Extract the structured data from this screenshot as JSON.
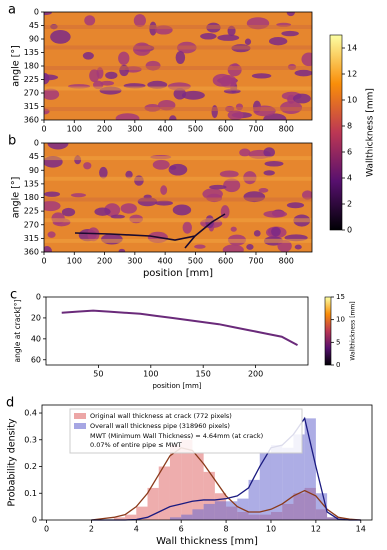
{
  "chart_data": [
    {
      "type": "heatmap",
      "panel_label": "a",
      "ylabel": "angle [°]",
      "xlim": [
        0,
        885
      ],
      "xticks": [
        0,
        100,
        200,
        300,
        400,
        500,
        600,
        700,
        800
      ],
      "ylim": [
        0,
        360
      ],
      "y_inverted": true,
      "yticks": [
        0,
        45,
        90,
        135,
        180,
        225,
        270,
        315,
        360
      ],
      "colorbar": {
        "label": "Wallthickness [mm]",
        "lim": [
          0,
          15
        ],
        "ticks": [
          0,
          2,
          4,
          6,
          8,
          10,
          12,
          14
        ]
      }
    },
    {
      "type": "heatmap",
      "panel_label": "b",
      "ylabel": "angle [°]",
      "xlabel": "position [mm]",
      "xlim": [
        0,
        885
      ],
      "xticks": [
        0,
        100,
        200,
        300,
        400,
        500,
        600,
        700,
        800
      ],
      "ylim": [
        0,
        360
      ],
      "y_inverted": true,
      "yticks": [
        0,
        45,
        90,
        135,
        180,
        225,
        270,
        315,
        360
      ]
    },
    {
      "type": "line",
      "panel_label": "c",
      "ylabel": "angle at crack[°]",
      "xlabel": "position [mm]",
      "xlim": [
        0,
        250
      ],
      "xticks": [
        50,
        100,
        150,
        200
      ],
      "ylim": [
        0,
        65
      ],
      "y_inverted": true,
      "yticks": [
        0,
        20,
        40,
        60
      ],
      "x": [
        15,
        30,
        45,
        60,
        75,
        90,
        105,
        120,
        135,
        150,
        165,
        180,
        195,
        210,
        225,
        240
      ],
      "series": [
        {
          "color": "#6a2a7a",
          "values": [
            15,
            14,
            13,
            14,
            15,
            16,
            18,
            20,
            22,
            24,
            26,
            29,
            32,
            35,
            38,
            46
          ]
        }
      ],
      "colorbar": {
        "label": "Wallthickness [mm]",
        "lim": [
          0,
          15
        ],
        "ticks": [
          0,
          5,
          10,
          15
        ]
      }
    },
    {
      "type": "histogram",
      "panel_label": "d",
      "xlabel": "Wall thickness [mm]",
      "ylabel": "Probability density",
      "xlim": [
        -0.2,
        14.5
      ],
      "xticks": [
        0,
        2,
        4,
        6,
        8,
        10,
        12,
        14
      ],
      "ylim": [
        0,
        0.43
      ],
      "yticks": [
        0,
        0.1,
        0.2,
        0.3,
        0.4
      ],
      "bins": [
        3,
        3.5,
        4,
        4.5,
        5,
        5.5,
        6,
        6.5,
        7,
        7.5,
        8,
        8.5,
        9,
        9.5,
        10,
        10.5,
        11,
        11.5,
        12,
        12.5,
        13
      ],
      "series": [
        {
          "name": "Original wall thickness at crack (772 pixels)",
          "color": "#e06a6a",
          "values": [
            0.01,
            0.02,
            0.05,
            0.12,
            0.2,
            0.28,
            0.3,
            0.25,
            0.18,
            0.1,
            0.05,
            0.03,
            0.02,
            0.02,
            0.03,
            0.06,
            0.1,
            0.12,
            0.04,
            0.01
          ]
        },
        {
          "name": "Overall wall thickness pipe (318960 pixels)",
          "color": "#6a6ad0",
          "values": [
            0,
            0,
            0,
            0,
            0,
            0.01,
            0.02,
            0.04,
            0.06,
            0.07,
            0.07,
            0.08,
            0.15,
            0.25,
            0.28,
            0.27,
            0.32,
            0.38,
            0.1,
            0.01
          ]
        }
      ],
      "kde_x": [
        2,
        2.5,
        3,
        3.5,
        4,
        4.5,
        5,
        5.5,
        6,
        6.5,
        7,
        7.5,
        8,
        8.5,
        9,
        9.5,
        10,
        10.5,
        11,
        11.5,
        12,
        12.5,
        13,
        13.5,
        14
      ],
      "kde_series": [
        {
          "color": "#8b3a1a",
          "values": [
            0,
            0.005,
            0.01,
            0.02,
            0.05,
            0.1,
            0.17,
            0.24,
            0.27,
            0.26,
            0.21,
            0.15,
            0.09,
            0.05,
            0.03,
            0.03,
            0.04,
            0.06,
            0.09,
            0.11,
            0.09,
            0.04,
            0.01,
            0.003,
            0
          ]
        },
        {
          "color": "#1a1a80",
          "values": [
            0,
            0,
            0,
            0,
            0.002,
            0.01,
            0.03,
            0.05,
            0.06,
            0.07,
            0.075,
            0.075,
            0.08,
            0.09,
            0.12,
            0.2,
            0.27,
            0.28,
            0.32,
            0.38,
            0.2,
            0.03,
            0.003,
            0,
            0
          ]
        }
      ],
      "annotations": [
        "MWT (Minimum Wall Thickness) = 4.64mm (at crack)",
        "0.07% of entire pipe ≤ MWT"
      ]
    }
  ]
}
